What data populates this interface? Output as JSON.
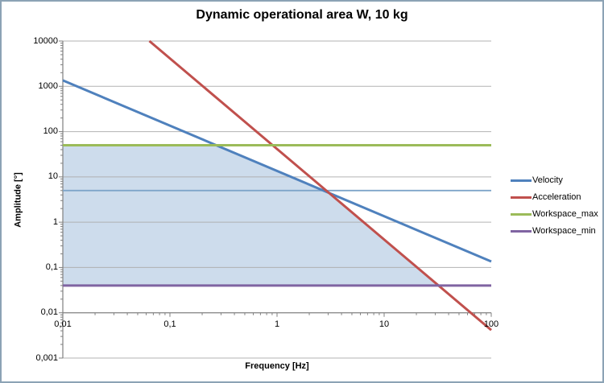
{
  "title": "Dynamic operational area W, 10 kg",
  "colors": {
    "velocity": "#4F81BD",
    "acceleration": "#C0504D",
    "workspace_max": "#9BBB59",
    "workspace_min": "#8064A2",
    "reference_line": "#7FA5C9",
    "area_fill": "#CDDCEC",
    "gridline": "#ABABAB",
    "axis_line": "#808080",
    "frame_border": "#8CA3B5",
    "text": "#000000"
  },
  "chart_data": {
    "type": "line",
    "title": "Dynamic operational area W, 10 kg",
    "x_axis": {
      "label": "Frequency [Hz]",
      "scale": "log",
      "min": 0.01,
      "max": 100,
      "tick_values": [
        0.01,
        0.1,
        1,
        10,
        100
      ],
      "tick_labels": [
        "0,01",
        "0,1",
        "1",
        "10",
        "100"
      ],
      "crosses_y_at": 0.01
    },
    "y_axis": {
      "label": "Amplitude [°]",
      "scale": "log",
      "min": 0.001,
      "max": 10000,
      "tick_values": [
        10000,
        1000,
        100,
        10,
        1,
        0.1,
        0.01,
        0.001
      ],
      "tick_labels": [
        "10000",
        "1000",
        "100",
        "10",
        "1",
        "0,1",
        "0,01",
        "0,001"
      ]
    },
    "grid": "major-horizontal",
    "legend_position": "right",
    "series": [
      {
        "name": "Velocity",
        "color": "#4F81BD",
        "width": 3,
        "slope_decades_per_decade": -1,
        "points": [
          [
            0.01,
            1353
          ],
          [
            100,
            0.1353
          ]
        ]
      },
      {
        "name": "Acceleration",
        "color": "#C0504D",
        "width": 3,
        "slope_decades_per_decade": -2,
        "points": [
          [
            0.0643,
            10000
          ],
          [
            100,
            0.00414
          ]
        ]
      },
      {
        "name": "Workspace_max",
        "color": "#9BBB59",
        "width": 3,
        "slope_decades_per_decade": 0,
        "points": [
          [
            0.01,
            50
          ],
          [
            100,
            50
          ]
        ]
      },
      {
        "name": "Workspace_min",
        "color": "#8064A2",
        "width": 3,
        "slope_decades_per_decade": 0,
        "points": [
          [
            0.01,
            0.04
          ],
          [
            100,
            0.04
          ]
        ]
      }
    ],
    "reference_line": {
      "name": "amplitude-reference-5deg",
      "color": "#7FA5C9",
      "width": 1.8,
      "points": [
        [
          0.01,
          5
        ],
        [
          100,
          5
        ]
      ]
    },
    "shaded_region": {
      "name": "dynamic-operational-area-W",
      "fill": "#CDDCEC",
      "points": [
        [
          0.01,
          50
        ],
        [
          0.2706,
          50
        ],
        [
          3.06,
          4.42
        ],
        [
          32.2,
          0.04
        ],
        [
          0.01,
          0.04
        ]
      ]
    }
  }
}
